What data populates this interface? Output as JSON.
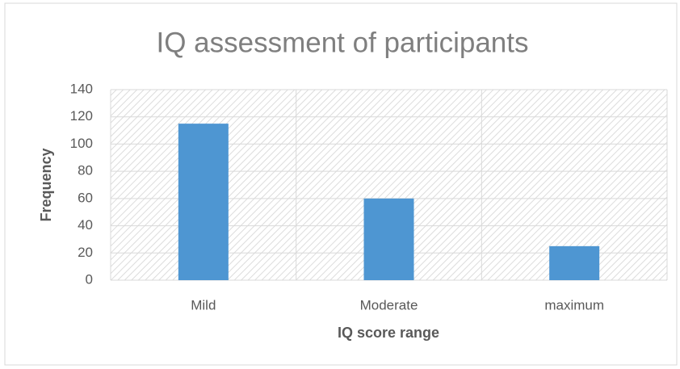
{
  "chart_data": {
    "type": "bar",
    "title": "IQ assessment of participants",
    "x_label": "IQ score range",
    "y_label": "Frequency",
    "categories": [
      "Mild",
      "Moderate",
      "maximum"
    ],
    "values": [
      115,
      60,
      25
    ],
    "color": "#4e96d2",
    "ylim": [
      0,
      140
    ],
    "yticks": [
      0,
      20,
      40,
      60,
      80,
      100,
      120,
      140
    ],
    "grid": true
  }
}
